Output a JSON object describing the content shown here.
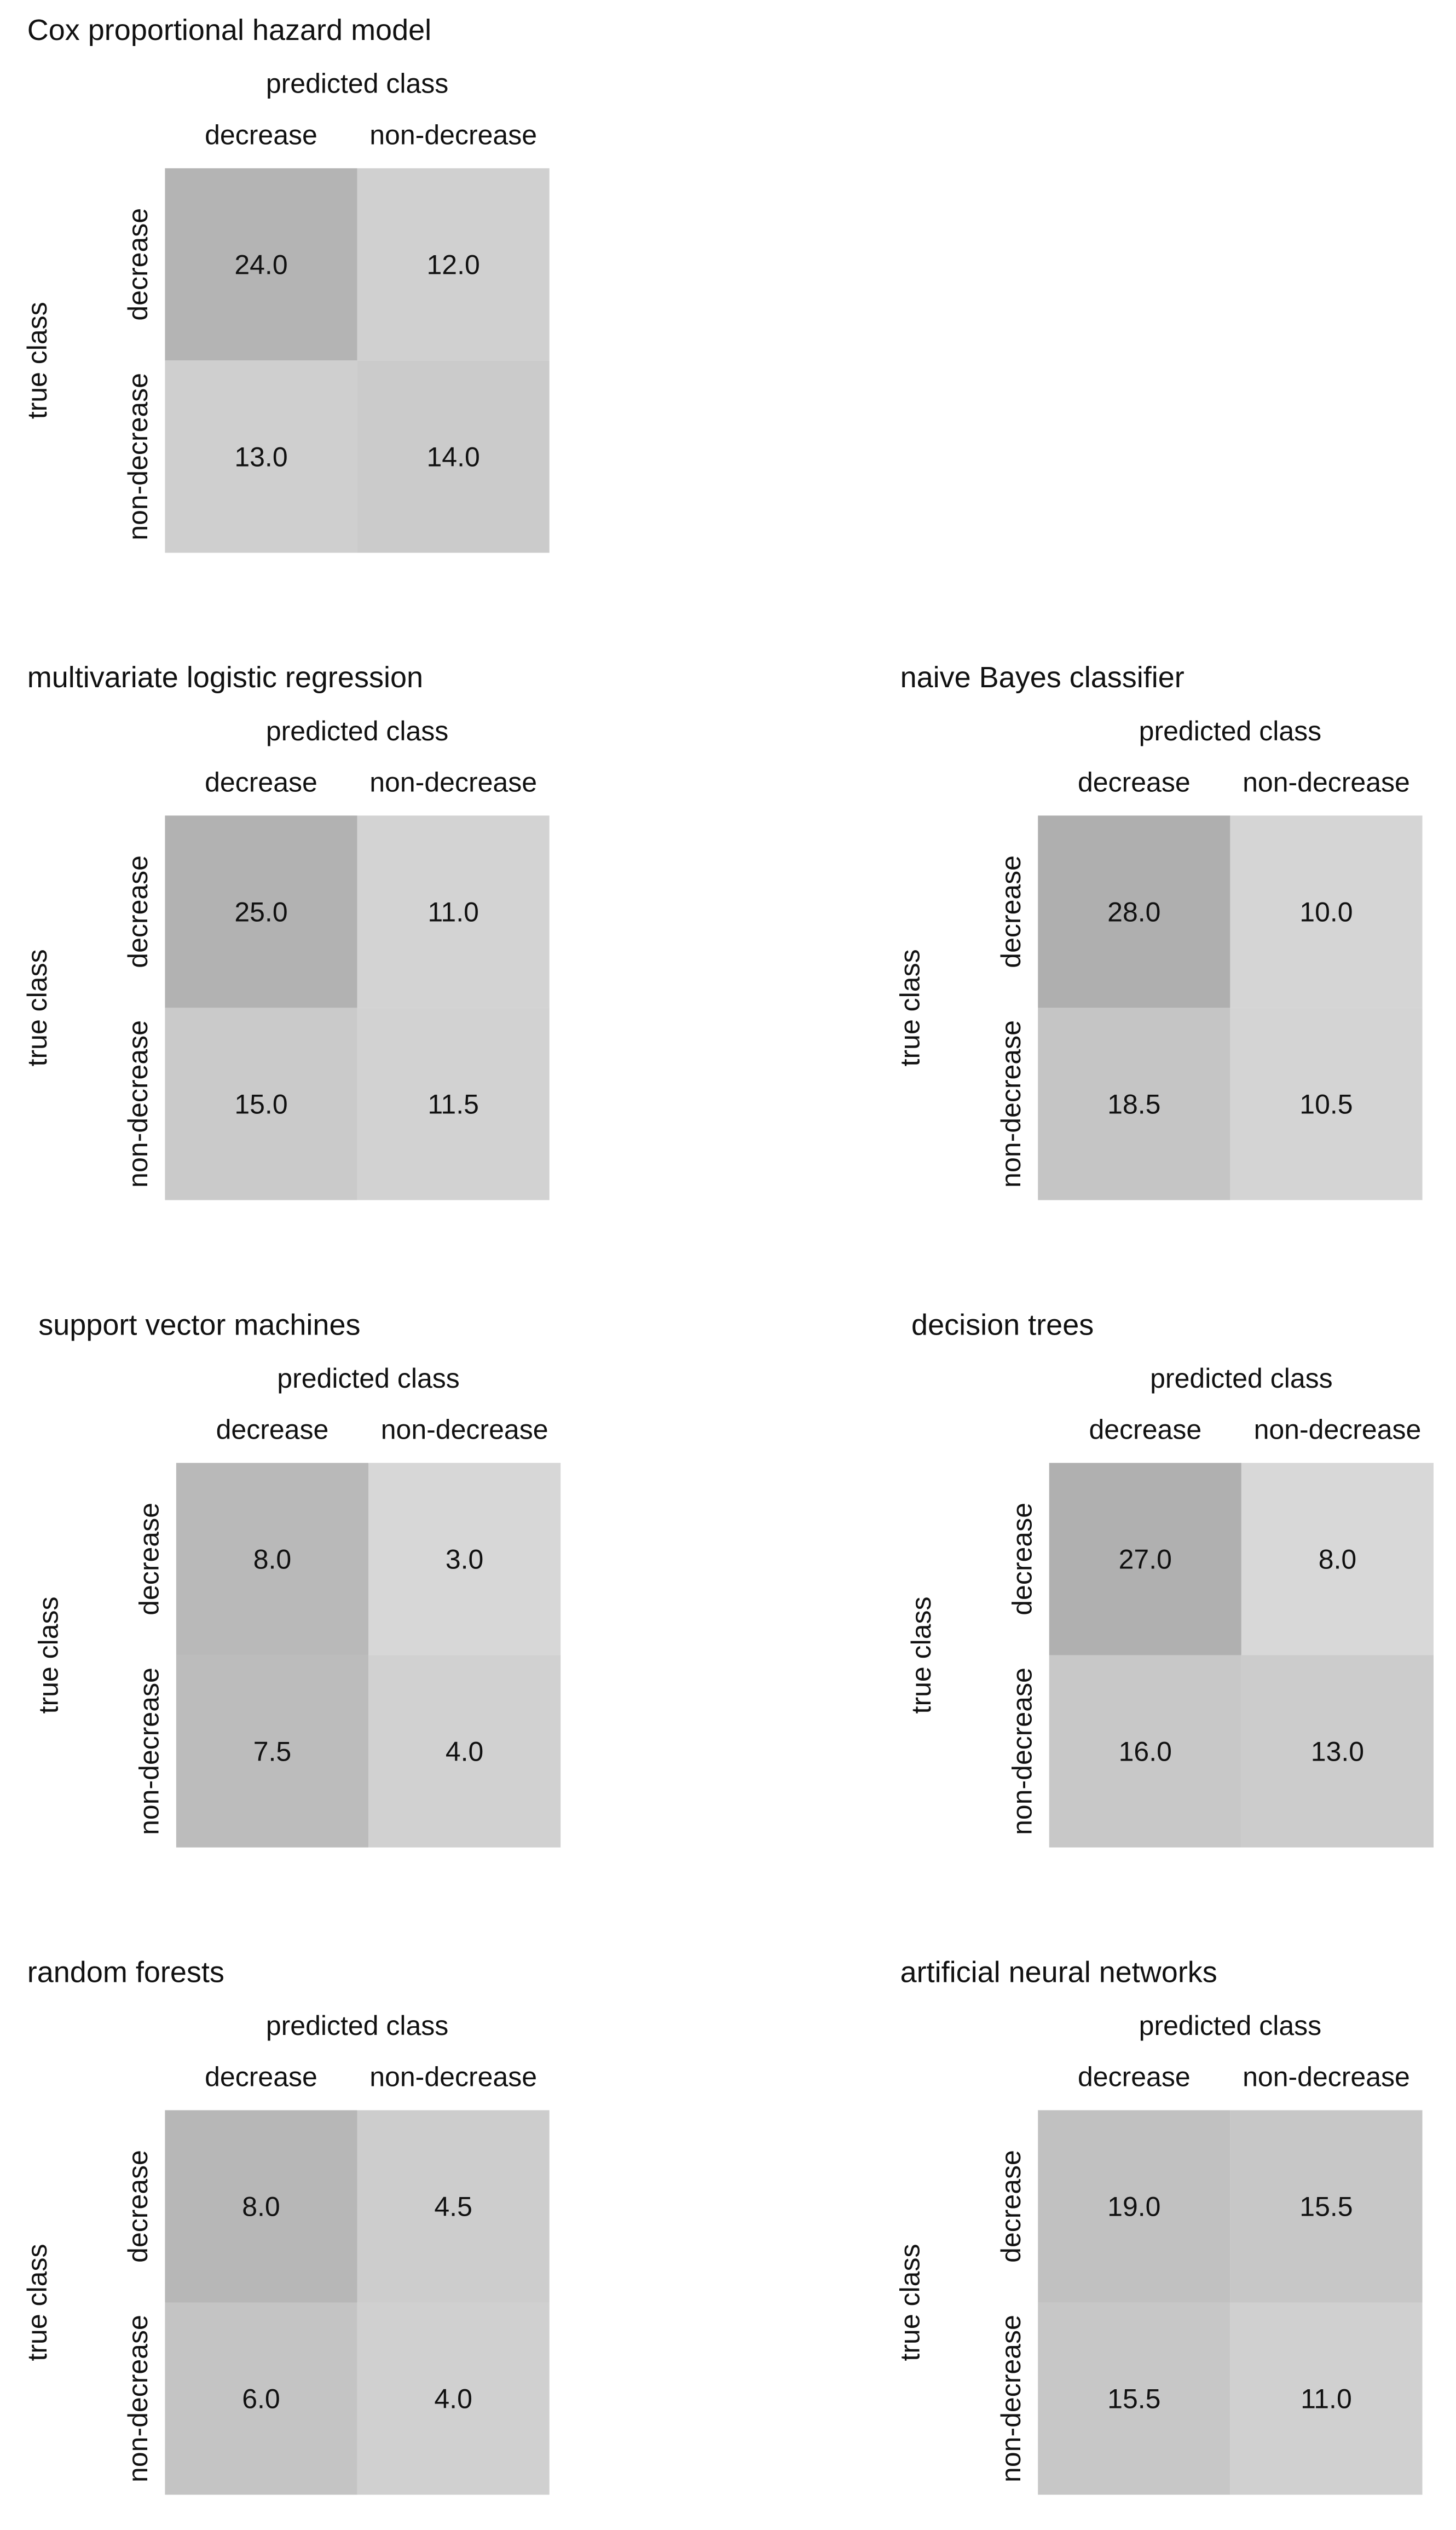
{
  "chart_data": [
    {
      "type": "heatmap",
      "title": "Cox proportional hazard model",
      "xlabel": "predicted class",
      "ylabel": "true class",
      "x_categories": [
        "decrease",
        "non-decrease"
      ],
      "y_categories": [
        "decrease",
        "non-decrease"
      ],
      "values": [
        [
          24.0,
          12.0
        ],
        [
          13.0,
          14.0
        ]
      ],
      "labels": [
        [
          "24.0",
          "12.0"
        ],
        [
          "13.0",
          "14.0"
        ]
      ],
      "colors": [
        [
          "#b4b4b4",
          "#d0d0d0"
        ],
        [
          "#cfcfcf",
          "#cbcbcb"
        ]
      ]
    },
    {
      "type": "heatmap",
      "title": "multivariate logistic regression",
      "xlabel": "predicted class",
      "ylabel": "true class",
      "x_categories": [
        "decrease",
        "non-decrease"
      ],
      "y_categories": [
        "decrease",
        "non-decrease"
      ],
      "values": [
        [
          25.0,
          11.0
        ],
        [
          15.0,
          11.5
        ]
      ],
      "labels": [
        [
          "25.0",
          "11.0"
        ],
        [
          "15.0",
          "11.5"
        ]
      ],
      "colors": [
        [
          "#b2b2b2",
          "#d3d3d3"
        ],
        [
          "#cacaca",
          "#d2d2d2"
        ]
      ]
    },
    {
      "type": "heatmap",
      "title": "naive Bayes classifier",
      "xlabel": "predicted class",
      "ylabel": "true class",
      "x_categories": [
        "decrease",
        "non-decrease"
      ],
      "y_categories": [
        "decrease",
        "non-decrease"
      ],
      "values": [
        [
          28.0,
          10.0
        ],
        [
          18.5,
          10.5
        ]
      ],
      "labels": [
        [
          "28.0",
          "10.0"
        ],
        [
          "18.5",
          "10.5"
        ]
      ],
      "colors": [
        [
          "#afafaf",
          "#d5d5d5"
        ],
        [
          "#c5c5c5",
          "#d4d4d4"
        ]
      ]
    },
    {
      "type": "heatmap",
      "title": "support vector machines",
      "xlabel": "predicted class",
      "ylabel": "true class",
      "x_categories": [
        "decrease",
        "non-decrease"
      ],
      "y_categories": [
        "decrease",
        "non-decrease"
      ],
      "values": [
        [
          8.0,
          3.0
        ],
        [
          7.5,
          4.0
        ]
      ],
      "labels": [
        [
          "8.0",
          "3.0"
        ],
        [
          "7.5",
          "4.0"
        ]
      ],
      "colors": [
        [
          "#b9b9b9",
          "#d7d7d7"
        ],
        [
          "#bcbcbc",
          "#d1d1d1"
        ]
      ]
    },
    {
      "type": "heatmap",
      "title": "decision trees",
      "xlabel": "predicted class",
      "ylabel": "true class",
      "x_categories": [
        "decrease",
        "non-decrease"
      ],
      "y_categories": [
        "decrease",
        "non-decrease"
      ],
      "values": [
        [
          27.0,
          8.0
        ],
        [
          16.0,
          13.0
        ]
      ],
      "labels": [
        [
          "27.0",
          "8.0"
        ],
        [
          "16.0",
          "13.0"
        ]
      ],
      "colors": [
        [
          "#b0b0b0",
          "#d8d8d8"
        ],
        [
          "#c8c8c8",
          "#cccccc"
        ]
      ]
    },
    {
      "type": "heatmap",
      "title": "random forests",
      "xlabel": "predicted class",
      "ylabel": "true class",
      "x_categories": [
        "decrease",
        "non-decrease"
      ],
      "y_categories": [
        "decrease",
        "non-decrease"
      ],
      "values": [
        [
          8.0,
          4.5
        ],
        [
          6.0,
          4.0
        ]
      ],
      "labels": [
        [
          "8.0",
          "4.5"
        ],
        [
          "6.0",
          "4.0"
        ]
      ],
      "colors": [
        [
          "#b7b7b7",
          "#cdcdcd"
        ],
        [
          "#c4c4c4",
          "#d0d0d0"
        ]
      ]
    },
    {
      "type": "heatmap",
      "title": "artificial neural networks",
      "xlabel": "predicted class",
      "ylabel": "true class",
      "x_categories": [
        "decrease",
        "non-decrease"
      ],
      "y_categories": [
        "decrease",
        "non-decrease"
      ],
      "values": [
        [
          19.0,
          15.5
        ],
        [
          15.5,
          11.0
        ]
      ],
      "labels": [
        [
          "19.0",
          "15.5"
        ],
        [
          "15.5",
          "11.0"
        ]
      ],
      "colors": [
        [
          "#c1c1c1",
          "#c7c7c7"
        ],
        [
          "#c7c7c7",
          "#d0d0d0"
        ]
      ]
    }
  ]
}
